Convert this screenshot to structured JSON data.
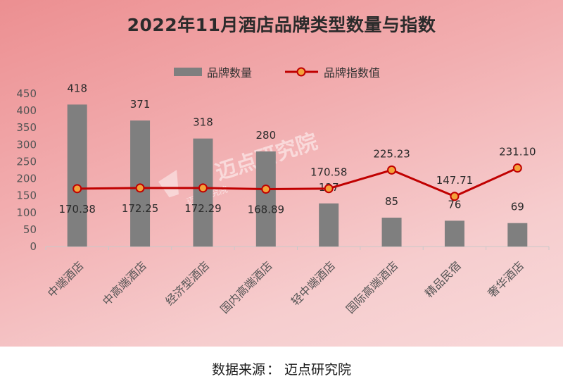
{
  "title": "2022年11月酒店品牌类型数量与指数",
  "source": {
    "label": "数据来源",
    "sep": "：",
    "name": "迈点研究院"
  },
  "watermark": {
    "main": "迈点研究院",
    "small": "迈点研究院"
  },
  "colors": {
    "bar": "#7f7f7f",
    "line": "#c00000",
    "marker_fill": "#f4a23a",
    "marker_stroke": "#c00000",
    "panel_start": "#ec8f91",
    "panel_end": "#f8d8d9"
  },
  "chart_data": {
    "type": "bar",
    "categories": [
      "中端酒店",
      "中高端酒店",
      "经济型酒店",
      "国内高端酒店",
      "轻中端酒店",
      "国际高端酒店",
      "精品民宿",
      "奢华酒店"
    ],
    "series": [
      {
        "name": "品牌数量",
        "type": "bar",
        "values": [
          418,
          371,
          318,
          280,
          127,
          85,
          76,
          69
        ],
        "labels": [
          "418",
          "371",
          "318",
          "280",
          "127",
          "85",
          "76",
          "69"
        ]
      },
      {
        "name": "品牌指数值",
        "type": "line",
        "values": [
          170.38,
          172.25,
          172.29,
          168.89,
          170.58,
          225.23,
          147.71,
          231.1
        ],
        "labels": [
          "170.38",
          "172.25",
          "172.29",
          "168.89",
          "170.58",
          "225.23",
          "147.71",
          "231.10"
        ]
      }
    ],
    "ylim": [
      0,
      450
    ],
    "yticks": [
      0,
      50,
      100,
      150,
      200,
      250,
      300,
      350,
      400,
      450
    ],
    "xlabel": "",
    "ylabel": "",
    "legend": "top-center",
    "grid": false
  }
}
